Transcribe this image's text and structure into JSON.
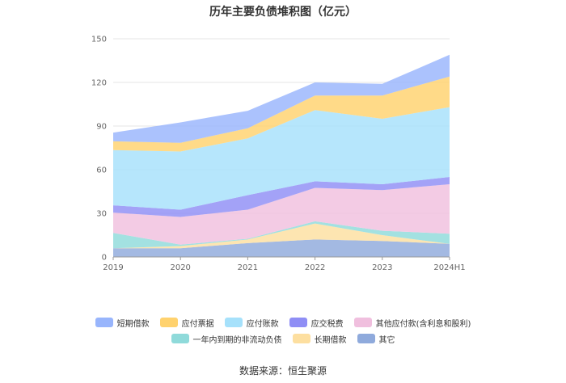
{
  "title": "历年主要负债堆积图（亿元）",
  "source": "数据来源：恒生聚源",
  "chart_data": {
    "type": "area",
    "stacked": true,
    "title": "历年主要负债堆积图（亿元）",
    "xlabel": "",
    "ylabel": "",
    "categories": [
      "2019",
      "2020",
      "2021",
      "2022",
      "2023",
      "2024H1"
    ],
    "ylim": [
      0,
      150
    ],
    "yticks": [
      0,
      30,
      60,
      90,
      120,
      150
    ],
    "grid": true,
    "legend_position": "bottom",
    "series": [
      {
        "name": "其它",
        "color": "#8faadc",
        "values": [
          6,
          6,
          9.5,
          12,
          11,
          9
        ]
      },
      {
        "name": "长期借款",
        "color": "#fddfa0",
        "values": [
          0,
          1.5,
          2.5,
          11,
          4,
          0
        ]
      },
      {
        "name": "一年内到期的非流动负债",
        "color": "#8fdada",
        "values": [
          10.5,
          1,
          0.5,
          1.5,
          3,
          7
        ]
      },
      {
        "name": "其他应付款(含利息和股利)",
        "color": "#f0bfde",
        "values": [
          14,
          19,
          20,
          23,
          28,
          34
        ]
      },
      {
        "name": "应交税费",
        "color": "#8f8ef5",
        "values": [
          5,
          5,
          10,
          4.5,
          4,
          5
        ]
      },
      {
        "name": "应付账款",
        "color": "#a6e1fb",
        "values": [
          38,
          40,
          39,
          49,
          45,
          48
        ]
      },
      {
        "name": "应付票据",
        "color": "#ffd26e",
        "values": [
          6,
          6,
          7,
          10,
          16,
          21
        ]
      },
      {
        "name": "短期借款",
        "color": "#98b5fc",
        "values": [
          6,
          14,
          12,
          9,
          8,
          15
        ]
      }
    ],
    "legend_rows": [
      [
        "短期借款",
        "应付票据",
        "应付账款",
        "应交税费",
        "其他应付款(含利息和股利)"
      ],
      [
        "一年内到期的非流动负债",
        "长期借款",
        "其它"
      ]
    ]
  }
}
